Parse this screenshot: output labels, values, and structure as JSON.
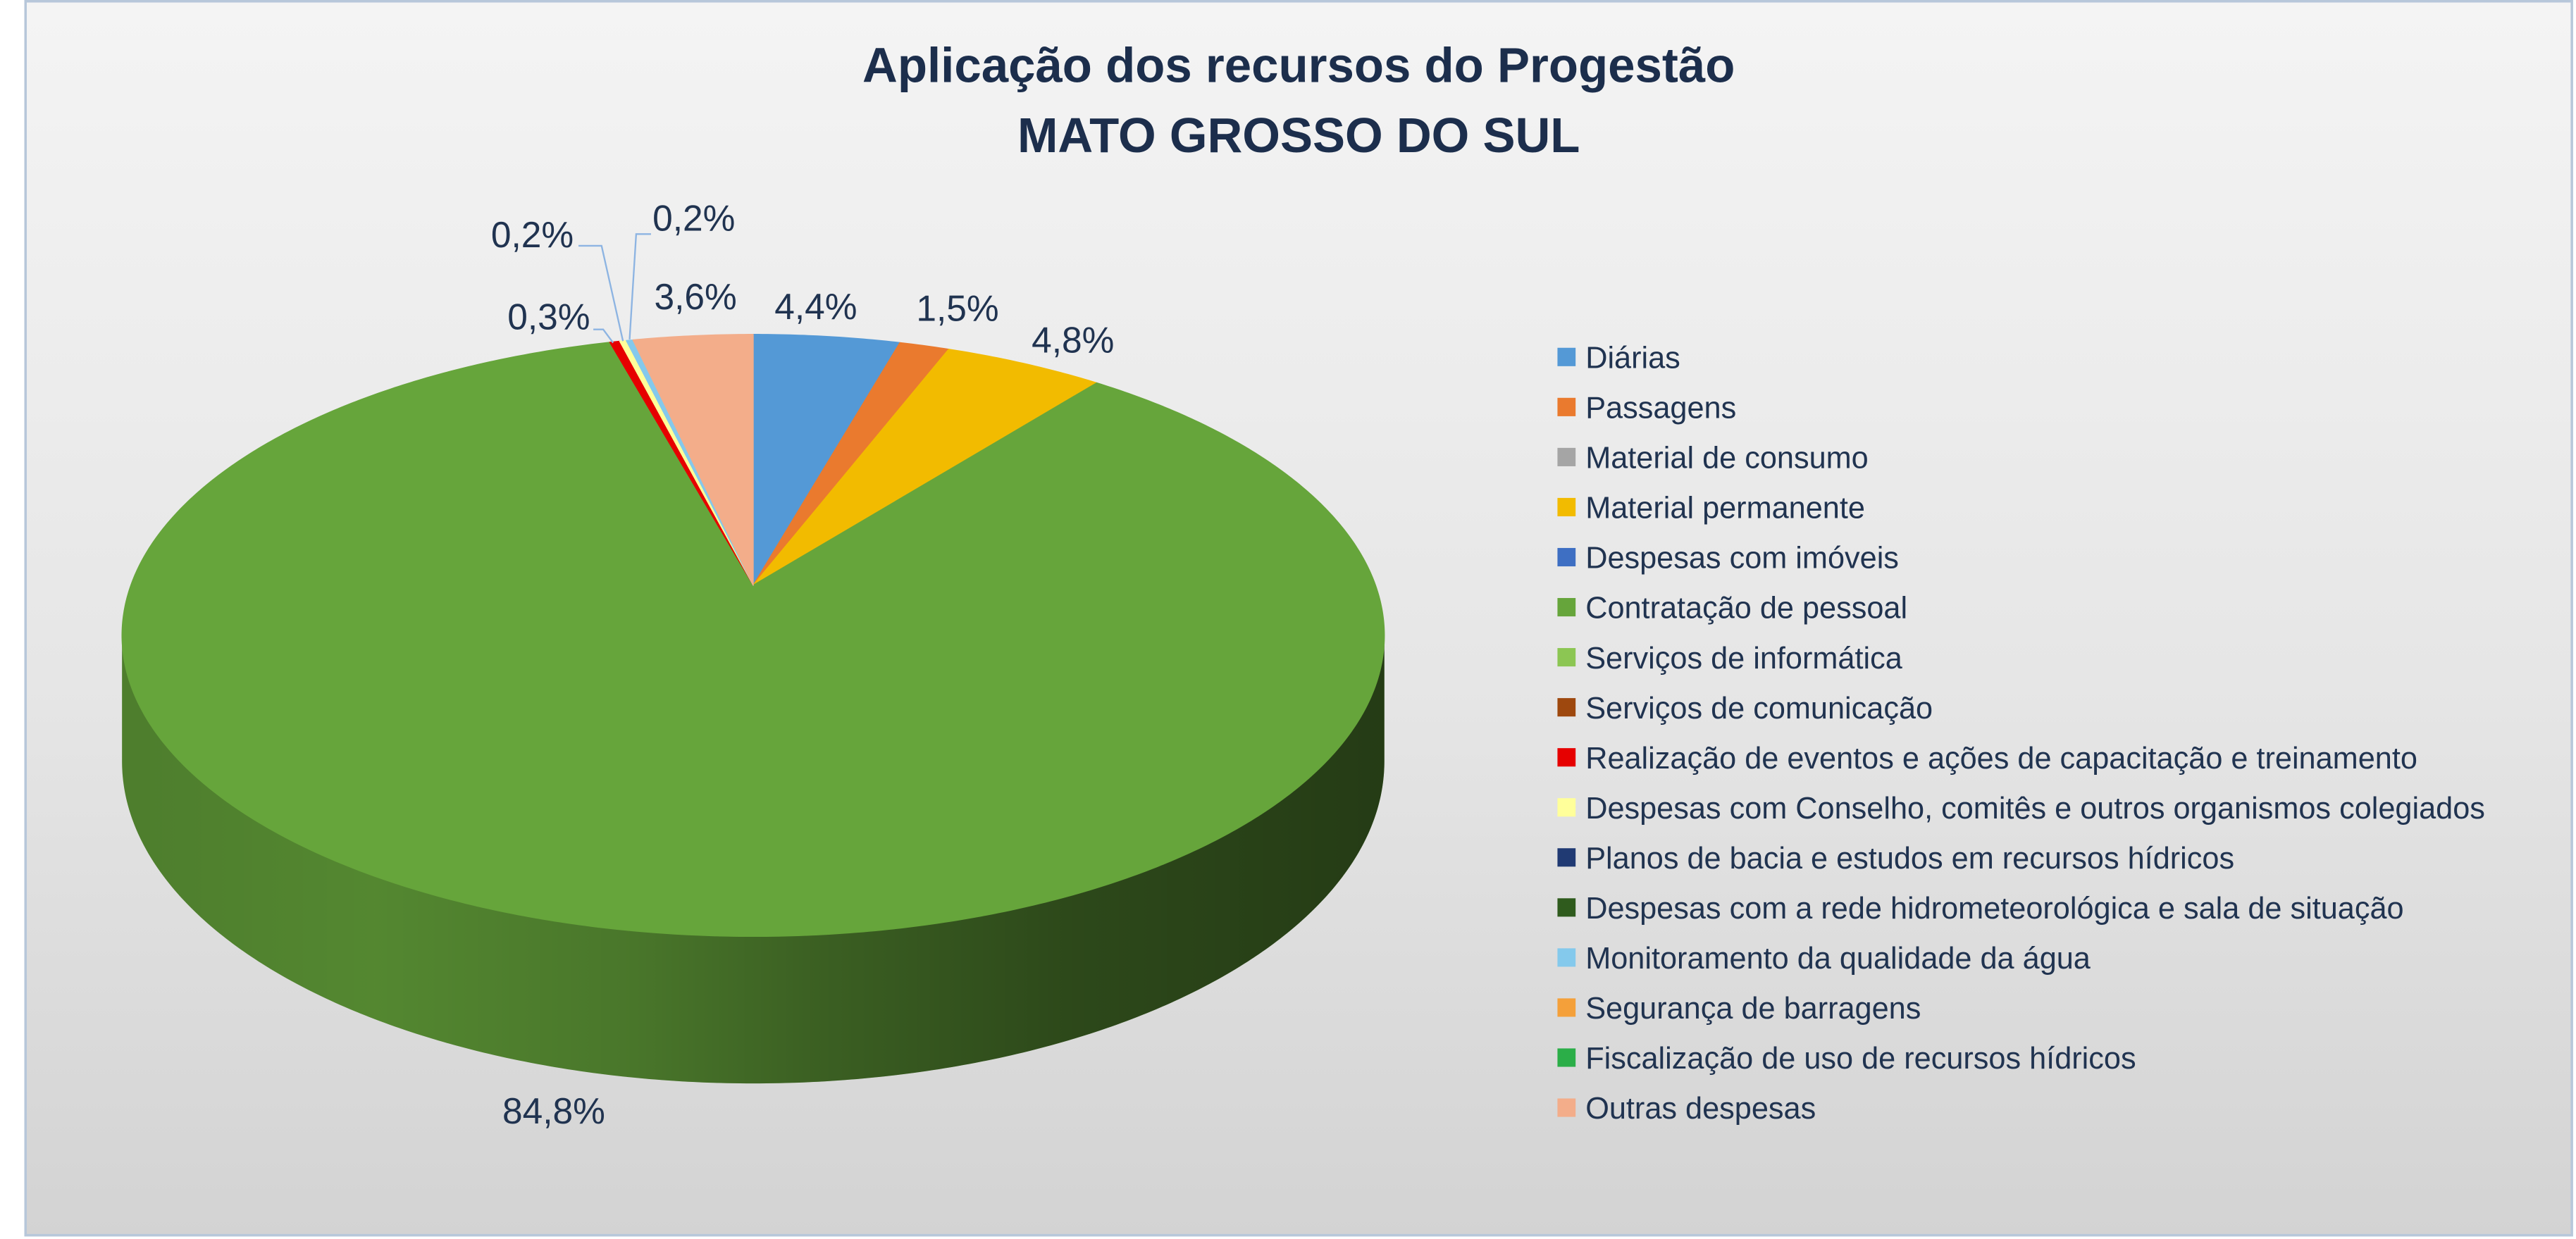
{
  "chart_data": {
    "type": "pie",
    "three_d": true,
    "title": "Aplicação dos recursos do Progestão",
    "subtitle": "MATO GROSSO DO SUL",
    "legend_position": "right",
    "categories": [
      "Diárias",
      "Passagens",
      "Material de consumo",
      "Material permanente",
      "Despesas com imóveis",
      "Contratação de pessoal",
      "Serviços de informática",
      "Serviços de comunicação",
      "Realização de eventos e ações de capacitação e treinamento",
      "Despesas com Conselho, comitês e outros organismos colegiados",
      "Planos de bacia e estudos em recursos hídricos",
      "Despesas com a rede hidrometeorológica e sala de situação",
      "Monitoramento da qualidade da água",
      "Segurança de barragens",
      "Fiscalização de uso de recursos hídricos",
      "Outras despesas"
    ],
    "values": [
      4.4,
      1.5,
      0,
      4.8,
      0,
      84.8,
      0,
      0,
      0.3,
      0.2,
      0,
      0,
      0.2,
      0,
      0,
      3.6
    ],
    "data_labels": [
      "4,4%",
      "1,5%",
      null,
      "4,8%",
      null,
      "84,8%",
      null,
      null,
      "0,3%",
      "0,2%",
      null,
      null,
      "0,2%",
      null,
      null,
      "3,6%"
    ],
    "colors": [
      "#5499d6",
      "#ea7a2e",
      "#a5a5a5",
      "#f2bb00",
      "#3e6fc3",
      "#66a53b",
      "#8cc653",
      "#9e480e",
      "#e60000",
      "#ffff9a",
      "#203a73",
      "#2f5b1d",
      "#84c9ec",
      "#f4a03a",
      "#2bae48",
      "#f3ad8a"
    ]
  }
}
